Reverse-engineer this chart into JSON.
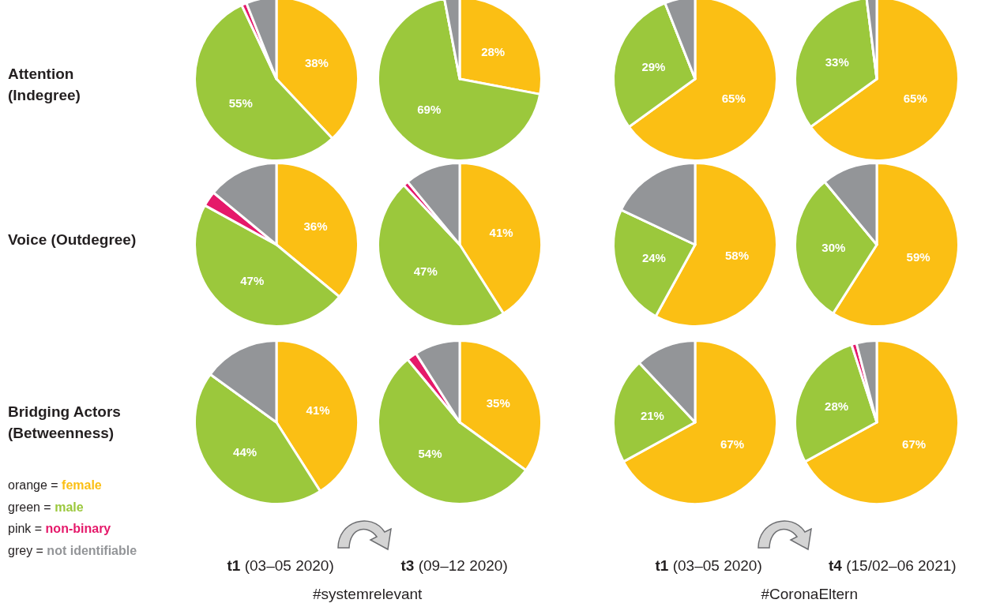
{
  "chart_data": [
    {
      "type": "pie",
      "categories": [
        null,
        null,
        null,
        null
      ],
      "values": [
        38,
        55,
        1,
        6
      ],
      "value_labels": [
        "38%",
        "55%",
        null,
        null
      ],
      "colors": [
        "#fbbf14",
        "#9bc83c",
        "#e5196a",
        "#939598"
      ]
    },
    {
      "type": "pie",
      "categories": [
        null,
        null,
        null,
        null
      ],
      "values": [
        28,
        69,
        0,
        3
      ],
      "value_labels": [
        "28%",
        "69%",
        null,
        null
      ],
      "colors": [
        "#fbbf14",
        "#9bc83c",
        "#e5196a",
        "#939598"
      ]
    },
    {
      "type": "pie",
      "categories": [
        null,
        null,
        null,
        null
      ],
      "values": [
        65,
        29,
        0,
        6
      ],
      "value_labels": [
        "65%",
        "29%",
        null,
        null
      ],
      "colors": [
        "#fbbf14",
        "#9bc83c",
        "#e5196a",
        "#939598"
      ]
    },
    {
      "type": "pie",
      "categories": [
        null,
        null,
        null,
        null
      ],
      "values": [
        65,
        33,
        0,
        2
      ],
      "value_labels": [
        "65%",
        "33%",
        null,
        null
      ],
      "colors": [
        "#fbbf14",
        "#9bc83c",
        "#e5196a",
        "#939598"
      ]
    },
    {
      "type": "pie",
      "categories": [
        null,
        null,
        null,
        null
      ],
      "values": [
        36,
        47,
        3,
        14
      ],
      "value_labels": [
        "36%",
        "47%",
        null,
        null
      ],
      "colors": [
        "#fbbf14",
        "#9bc83c",
        "#e5196a",
        "#939598"
      ]
    },
    {
      "type": "pie",
      "categories": [
        null,
        null,
        null,
        null
      ],
      "values": [
        41,
        47,
        1,
        11
      ],
      "value_labels": [
        "41%",
        "47%",
        null,
        null
      ],
      "colors": [
        "#fbbf14",
        "#9bc83c",
        "#e5196a",
        "#939598"
      ]
    },
    {
      "type": "pie",
      "categories": [
        null,
        null,
        null,
        null
      ],
      "values": [
        58,
        24,
        0,
        18
      ],
      "value_labels": [
        "58%",
        "24%",
        null,
        null
      ],
      "colors": [
        "#fbbf14",
        "#9bc83c",
        "#e5196a",
        "#939598"
      ]
    },
    {
      "type": "pie",
      "categories": [
        null,
        null,
        null,
        null
      ],
      "values": [
        59,
        30,
        0,
        11
      ],
      "value_labels": [
        "59%",
        "30%",
        null,
        null
      ],
      "colors": [
        "#fbbf14",
        "#9bc83c",
        "#e5196a",
        "#939598"
      ]
    },
    {
      "type": "pie",
      "categories": [
        null,
        null,
        null,
        null
      ],
      "values": [
        41,
        44,
        0,
        15
      ],
      "value_labels": [
        "41%",
        "44%",
        null,
        null
      ],
      "colors": [
        "#fbbf14",
        "#9bc83c",
        "#e5196a",
        "#939598"
      ]
    },
    {
      "type": "pie",
      "categories": [
        null,
        null,
        null,
        null
      ],
      "values": [
        35,
        54,
        2,
        9
      ],
      "value_labels": [
        "35%",
        "54%",
        null,
        null
      ],
      "colors": [
        "#fbbf14",
        "#9bc83c",
        "#e5196a",
        "#939598"
      ]
    },
    {
      "type": "pie",
      "categories": [
        null,
        null,
        null,
        null
      ],
      "values": [
        67,
        21,
        0,
        12
      ],
      "value_labels": [
        "67%",
        "21%",
        null,
        null
      ],
      "colors": [
        "#fbbf14",
        "#9bc83c",
        "#e5196a",
        "#939598"
      ]
    },
    {
      "type": "pie",
      "categories": [
        null,
        null,
        null,
        null
      ],
      "values": [
        67,
        28,
        1,
        4
      ],
      "value_labels": [
        "67%",
        "28%",
        null,
        null
      ],
      "colors": [
        "#fbbf14",
        "#9bc83c",
        "#e5196a",
        "#939598"
      ]
    },
    {
      "type": "other",
      "annotations": [
        "Attention (Indegree)",
        "Voice (Outdegree)",
        "Bridging Actors (Betweenness)",
        "orange = female",
        "green = male",
        "pink = non-binary",
        "grey = not identifiable",
        "t1 (03–05 2020)",
        "t3 (09–12 2020)",
        "t1 (03–05 2020)",
        "t4 (15/02–06 2021)",
        "#systemrelevant",
        "#CoronaEltern"
      ],
      "colors": [
        null,
        null,
        null,
        "#fbbf14",
        "#9bc83c",
        "#e5196a",
        "#939598",
        null,
        null,
        null,
        null,
        null,
        null
      ]
    }
  ]
}
